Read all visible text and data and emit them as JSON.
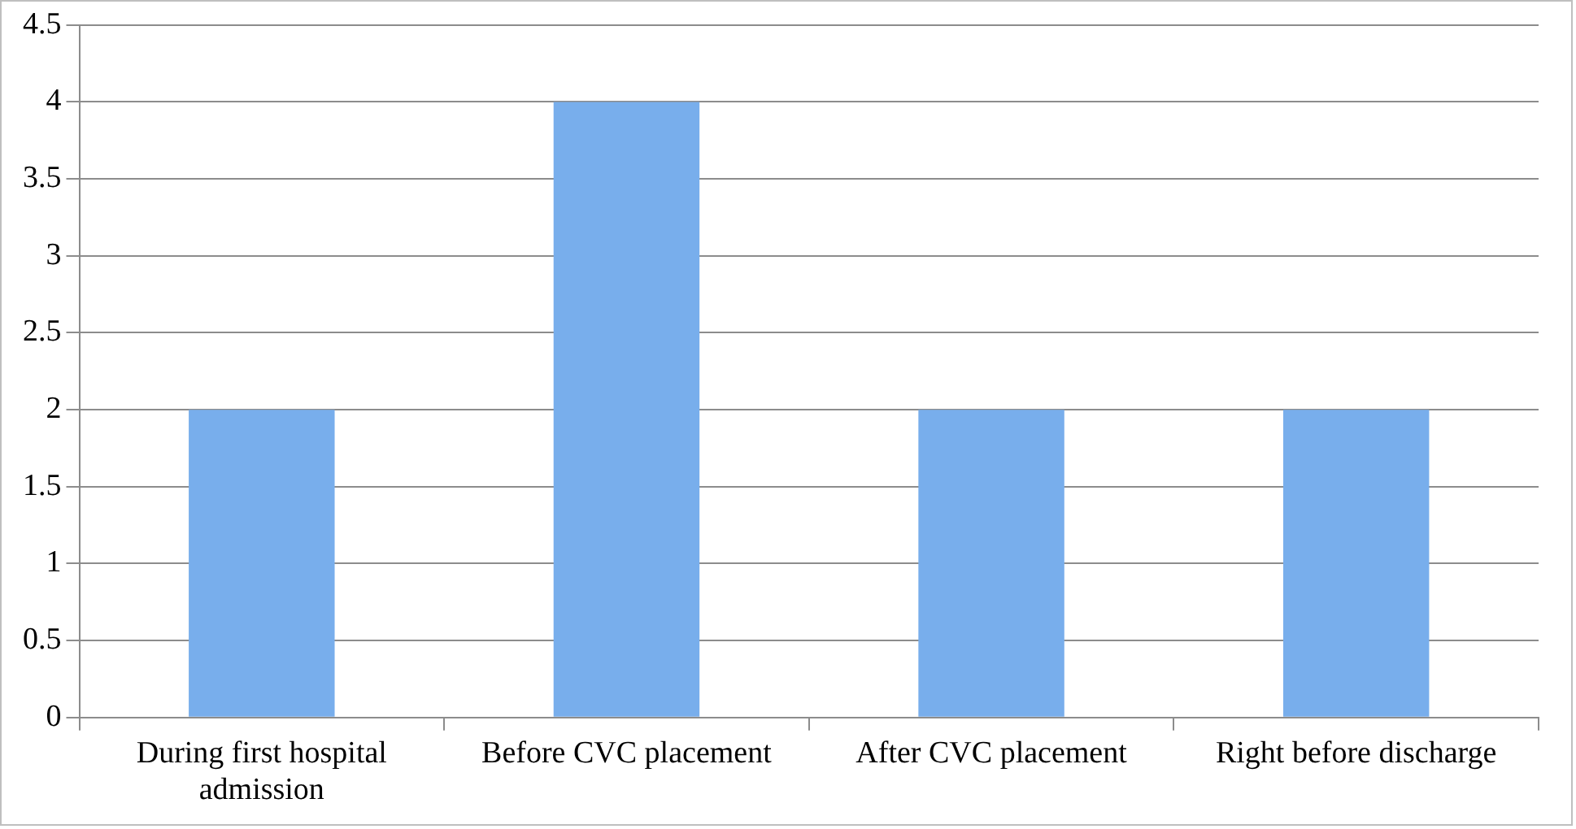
{
  "chart_data": {
    "type": "bar",
    "categories": [
      "During first hospital admission",
      "Before CVC placement",
      "After CVC placement",
      "Right before discharge"
    ],
    "values": [
      2,
      4,
      2,
      2
    ],
    "color": "#78aeec",
    "ylim": [
      0,
      4.5
    ],
    "yticks": [
      0,
      0.5,
      1,
      1.5,
      2,
      2.5,
      3,
      3.5,
      4,
      4.5
    ],
    "grid": "y",
    "legend": false
  }
}
